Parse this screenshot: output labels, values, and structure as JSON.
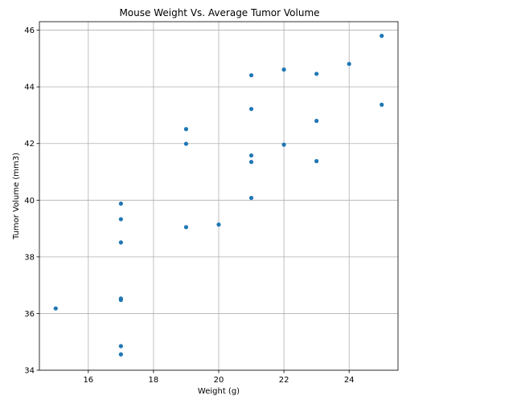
{
  "chart_data": {
    "type": "scatter",
    "title": "Mouse Weight Vs. Average Tumor Volume",
    "xlabel": "Weight (g)",
    "ylabel": "Tumor Volume (mm3)",
    "xlim": [
      14.5,
      25.5
    ],
    "ylim": [
      34,
      46.3
    ],
    "x_ticks": [
      16,
      18,
      20,
      22,
      24
    ],
    "y_ticks": [
      34,
      36,
      38,
      40,
      42,
      44,
      46
    ],
    "grid": true,
    "marker_color": "#1f77b4",
    "points": [
      {
        "x": 15,
        "y": 36.18
      },
      {
        "x": 17,
        "y": 34.56
      },
      {
        "x": 17,
        "y": 34.85
      },
      {
        "x": 17,
        "y": 36.48
      },
      {
        "x": 17,
        "y": 36.53
      },
      {
        "x": 17,
        "y": 38.51
      },
      {
        "x": 17,
        "y": 39.33
      },
      {
        "x": 17,
        "y": 39.88
      },
      {
        "x": 19,
        "y": 39.05
      },
      {
        "x": 19,
        "y": 41.99
      },
      {
        "x": 19,
        "y": 42.51
      },
      {
        "x": 20,
        "y": 39.14
      },
      {
        "x": 21,
        "y": 40.08
      },
      {
        "x": 21,
        "y": 41.35
      },
      {
        "x": 21,
        "y": 41.58
      },
      {
        "x": 21,
        "y": 43.22
      },
      {
        "x": 21,
        "y": 44.41
      },
      {
        "x": 22,
        "y": 41.96
      },
      {
        "x": 22,
        "y": 44.61
      },
      {
        "x": 23,
        "y": 41.38
      },
      {
        "x": 23,
        "y": 42.8
      },
      {
        "x": 23,
        "y": 44.46
      },
      {
        "x": 24,
        "y": 44.81
      },
      {
        "x": 25,
        "y": 43.37
      },
      {
        "x": 25,
        "y": 45.8
      }
    ]
  }
}
